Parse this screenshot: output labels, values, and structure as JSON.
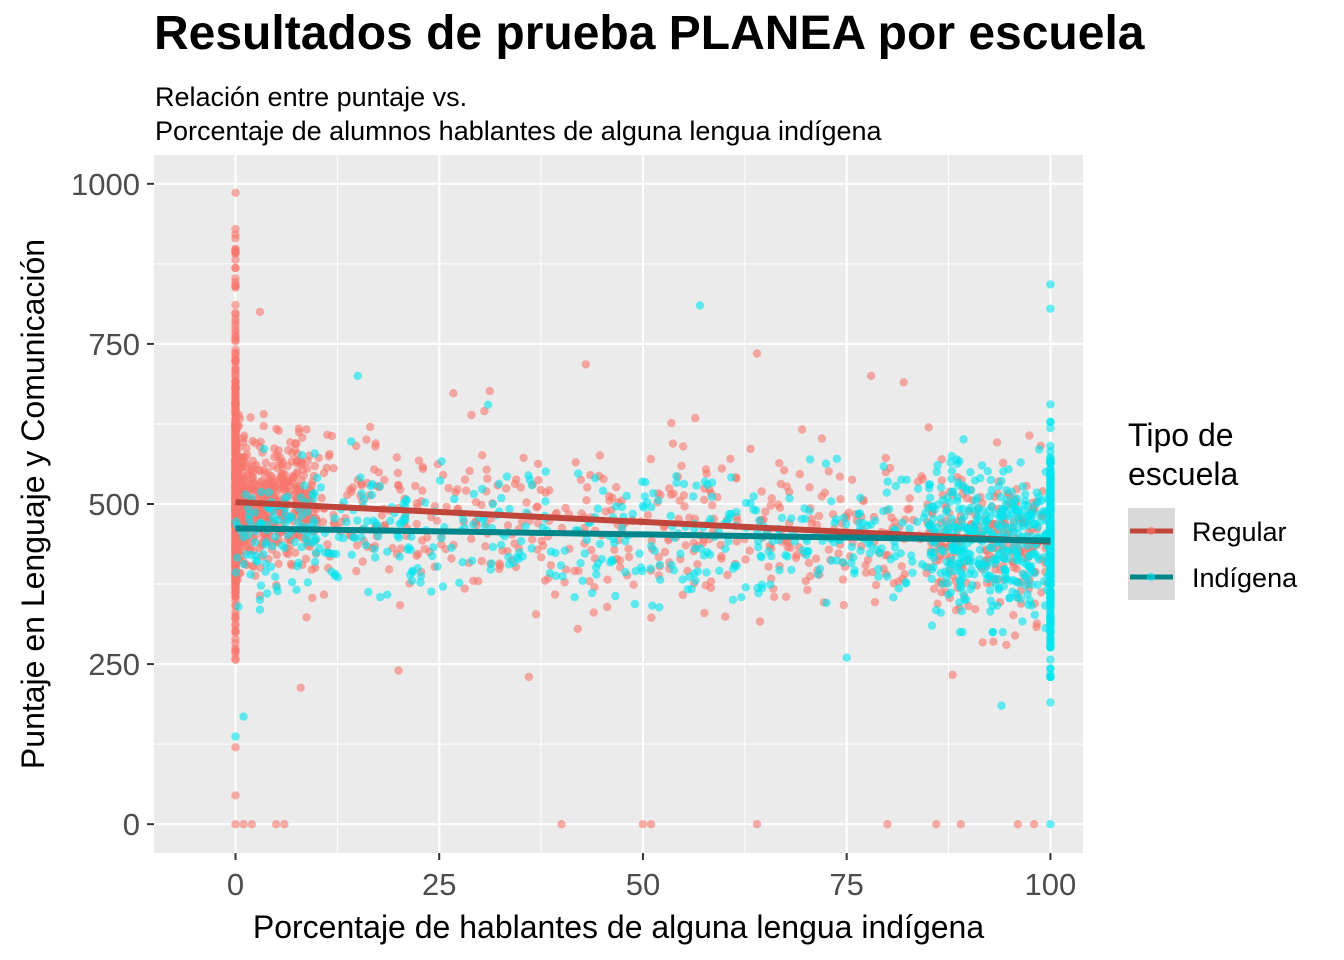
{
  "chart_data": {
    "type": "scatter",
    "title": "Resultados de prueba PLANEA por escuela",
    "subtitle_lines": [
      "Relación entre puntaje vs.",
      "Porcentaje de alumnos hablantes de alguna lengua indígena"
    ],
    "xlabel": "Porcentaje de hablantes de alguna lengua indígena",
    "ylabel": "Puntaje en Lenguaje y Comunicación",
    "xlim": [
      -10,
      104
    ],
    "ylim": [
      -45,
      1045
    ],
    "x_ticks": [
      0,
      25,
      50,
      75,
      100
    ],
    "y_ticks": [
      0,
      250,
      500,
      750,
      1000
    ],
    "x_tick_labels": [
      "0",
      "25",
      "50",
      "75",
      "100"
    ],
    "y_tick_labels": [
      "0",
      "250",
      "500",
      "750",
      "1000"
    ],
    "grid": true,
    "legend": {
      "title_lines": [
        "Tipo de",
        "escuela"
      ],
      "position": "right"
    },
    "series": [
      {
        "name": "Regular",
        "point_color": "#F8766D",
        "line_color": "#C0463C",
        "trend": [
          [
            0,
            503
          ],
          [
            100,
            441
          ]
        ],
        "sample_points": [
          [
            0,
            986
          ],
          [
            0,
            0
          ],
          [
            0,
            45
          ],
          [
            0,
            120
          ],
          [
            1,
            0
          ],
          [
            2,
            0
          ],
          [
            3,
            800
          ],
          [
            5,
            0
          ],
          [
            6,
            0
          ],
          [
            8,
            213
          ],
          [
            20,
            240
          ],
          [
            36,
            230
          ],
          [
            40,
            0
          ],
          [
            42,
            305
          ],
          [
            43,
            718
          ],
          [
            50,
            0
          ],
          [
            51,
            0
          ],
          [
            64,
            0
          ],
          [
            64,
            735
          ],
          [
            78,
            700
          ],
          [
            80,
            0
          ],
          [
            82,
            690
          ],
          [
            86,
            0
          ],
          [
            88,
            233
          ],
          [
            89,
            0
          ],
          [
            93,
            285
          ],
          [
            96,
            0
          ],
          [
            98,
            0
          ],
          [
            100,
            480
          ]
        ]
      },
      {
        "name": "Indígena",
        "point_color": "#00E5EE",
        "line_color": "#00868B",
        "trend": [
          [
            0,
            462
          ],
          [
            100,
            443
          ]
        ],
        "sample_points": [
          [
            57,
            810
          ],
          [
            100,
            843
          ],
          [
            100,
            805
          ],
          [
            94,
            185
          ],
          [
            100,
            190
          ],
          [
            100,
            0
          ],
          [
            75,
            260
          ],
          [
            1,
            168
          ],
          [
            3,
            335
          ],
          [
            31,
            655
          ],
          [
            15,
            700
          ],
          [
            0,
            137
          ]
        ]
      }
    ],
    "annotations": []
  }
}
